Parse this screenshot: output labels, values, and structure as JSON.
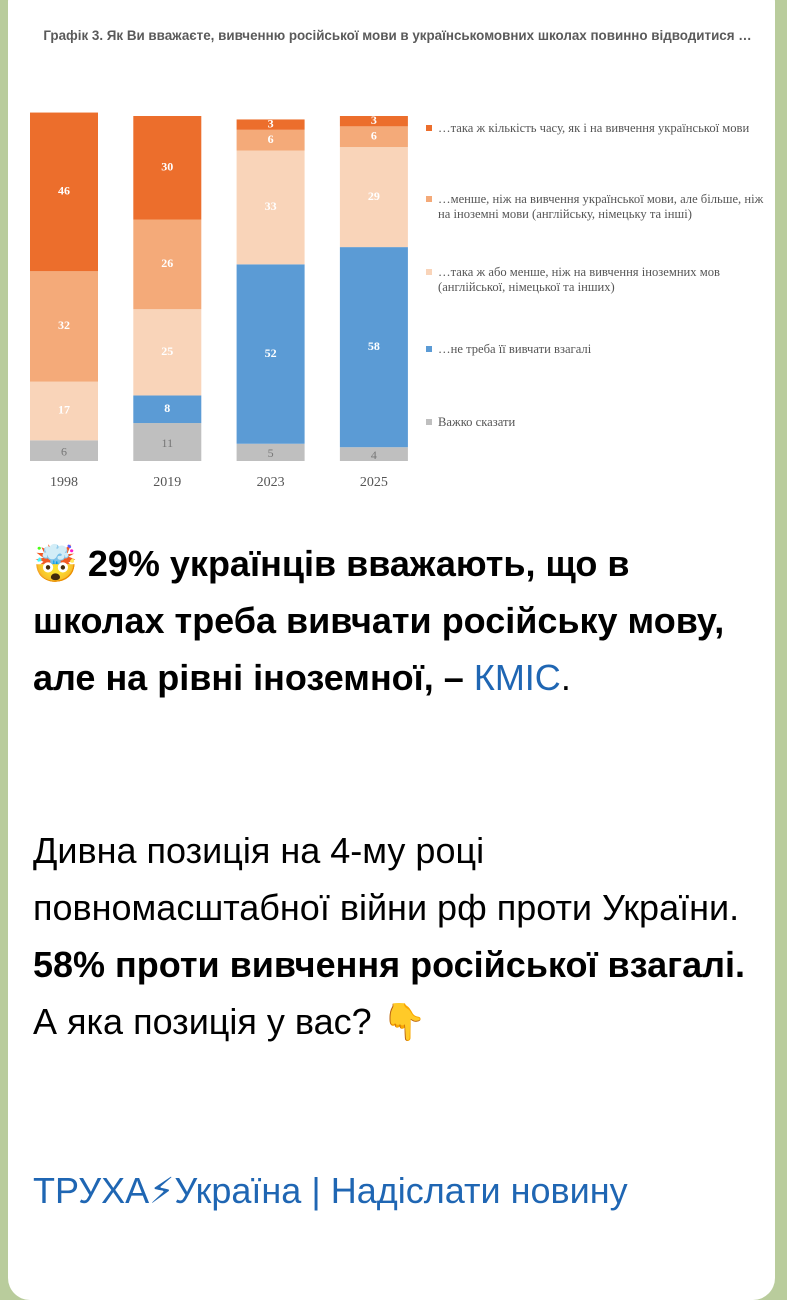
{
  "chart_data": {
    "type": "stacked-bar",
    "title": "Графік 3. Як Ви вважаєте, вивченню російської мови в українськомовних школах повинно відводитися …",
    "categories": [
      "1998",
      "2019",
      "2023",
      "2025"
    ],
    "series": [
      {
        "name": "…така ж кількість часу, як і на вивчення української мови",
        "color": "#ec6e2c",
        "values": [
          46,
          30,
          3,
          3
        ]
      },
      {
        "name": "…менше, ніж на вивчення української мови, але більше, ніж на іноземні мови (англійську, німецьку та інші)",
        "color": "#f4aa79",
        "values": [
          32,
          26,
          6,
          6
        ]
      },
      {
        "name": "…така ж або менше, ніж на вивчення іноземних мов (англійської, німецької та інших)",
        "color": "#f9d4b9",
        "values": [
          17,
          25,
          33,
          29
        ]
      },
      {
        "name": "…не треба її вивчати взагалі",
        "color": "#5b9bd5",
        "values": [
          null,
          8,
          52,
          58
        ]
      },
      {
        "name": "Важко сказати",
        "color": "#bfbfbf",
        "values": [
          6,
          11,
          5,
          4
        ]
      }
    ]
  },
  "post": {
    "emoji": "🤯",
    "headline": "29% українців вважають, що в школах треба вивчати російську мову, але на рівні іноземної, –",
    "source": "КМІС",
    "period": ".",
    "body_start": "Дивна позиція на 4-му році повномасштабної війни рф проти України.",
    "body_bold": "58% проти вивчення російської взагалі.",
    "body_end": "А яка позиція у вас?",
    "body_emoji": "👇",
    "channel": "ТРУХА⚡Україна",
    "separator": "|",
    "send": "Надіслати новину"
  }
}
